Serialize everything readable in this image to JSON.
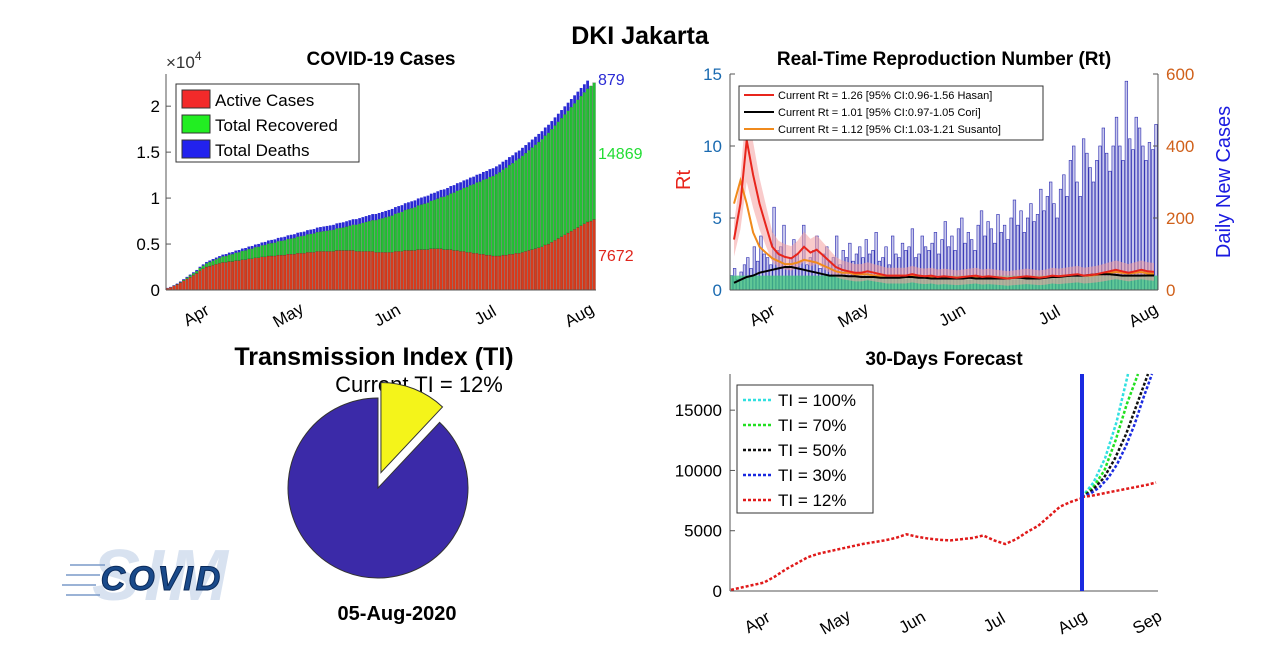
{
  "page": {
    "title": "DKI Jakarta",
    "date": "05-Aug-2020"
  },
  "logo": {
    "text": "COVID",
    "watermark": "SIM"
  },
  "colors": {
    "active": "#d93a1b",
    "recovered": "#22c133",
    "deaths": "#2a2ad4",
    "rt_hasan": "#e8251c",
    "rt_cori": "#000000",
    "rt_susanto": "#f08a1c",
    "daily_cases": "#2a2ab0",
    "ti_pie": "#3b2aa8",
    "ti_slice": "#f4f41a",
    "forecast_line": "#1a2ae0"
  },
  "chart_data": [
    {
      "id": "cases",
      "type": "bar",
      "title": "COVID-19 Cases",
      "stacked": true,
      "multiplier_label": "×10",
      "multiplier_exp": "4",
      "x_ticks": [
        "Apr",
        "May",
        "Jun",
        "Jul",
        "Aug"
      ],
      "ylim": [
        0,
        2.35
      ],
      "yticks": [
        "0",
        "0.5",
        "1",
        "1.5",
        "2"
      ],
      "grid": false,
      "legend_position": "top-left",
      "series": [
        {
          "name": "Active Cases",
          "color_key": "active",
          "last_value": "7672"
        },
        {
          "name": "Total Recovered",
          "color_key": "recovered",
          "last_value": "14869"
        },
        {
          "name": "Total Deaths",
          "color_key": "deaths",
          "last_value": "879"
        }
      ],
      "active": [
        0.02,
        0.03,
        0.045,
        0.06,
        0.08,
        0.1,
        0.12,
        0.14,
        0.16,
        0.18,
        0.21,
        0.23,
        0.25,
        0.26,
        0.27,
        0.28,
        0.29,
        0.3,
        0.3,
        0.31,
        0.31,
        0.32,
        0.32,
        0.33,
        0.33,
        0.34,
        0.34,
        0.35,
        0.35,
        0.36,
        0.36,
        0.37,
        0.37,
        0.37,
        0.38,
        0.38,
        0.38,
        0.39,
        0.39,
        0.39,
        0.4,
        0.4,
        0.4,
        0.41,
        0.41,
        0.41,
        0.42,
        0.42,
        0.42,
        0.42,
        0.42,
        0.42,
        0.43,
        0.43,
        0.43,
        0.43,
        0.43,
        0.43,
        0.42,
        0.42,
        0.42,
        0.42,
        0.42,
        0.42,
        0.41,
        0.41,
        0.41,
        0.41,
        0.41,
        0.41,
        0.42,
        0.42,
        0.42,
        0.43,
        0.43,
        0.43,
        0.43,
        0.44,
        0.44,
        0.44,
        0.44,
        0.45,
        0.45,
        0.45,
        0.45,
        0.44,
        0.44,
        0.44,
        0.43,
        0.43,
        0.42,
        0.42,
        0.41,
        0.41,
        0.4,
        0.4,
        0.39,
        0.39,
        0.38,
        0.38,
        0.37,
        0.37,
        0.37,
        0.38,
        0.38,
        0.39,
        0.39,
        0.4,
        0.4,
        0.41,
        0.42,
        0.43,
        0.44,
        0.45,
        0.46,
        0.47,
        0.49,
        0.5,
        0.52,
        0.54,
        0.56,
        0.58,
        0.6,
        0.62,
        0.64,
        0.66,
        0.68,
        0.7,
        0.72,
        0.74,
        0.75,
        0.7672
      ],
      "recovered": [
        0,
        0,
        0.002,
        0.004,
        0.006,
        0.01,
        0.014,
        0.018,
        0.022,
        0.026,
        0.03,
        0.035,
        0.04,
        0.045,
        0.05,
        0.055,
        0.06,
        0.065,
        0.07,
        0.075,
        0.08,
        0.085,
        0.09,
        0.095,
        0.1,
        0.105,
        0.11,
        0.115,
        0.12,
        0.125,
        0.13,
        0.135,
        0.14,
        0.145,
        0.15,
        0.155,
        0.16,
        0.165,
        0.17,
        0.175,
        0.18,
        0.185,
        0.19,
        0.195,
        0.2,
        0.205,
        0.21,
        0.215,
        0.22,
        0.225,
        0.23,
        0.235,
        0.24,
        0.245,
        0.25,
        0.26,
        0.27,
        0.28,
        0.29,
        0.3,
        0.31,
        0.32,
        0.33,
        0.34,
        0.35,
        0.36,
        0.37,
        0.38,
        0.39,
        0.4,
        0.41,
        0.42,
        0.43,
        0.44,
        0.45,
        0.46,
        0.47,
        0.48,
        0.49,
        0.5,
        0.51,
        0.52,
        0.53,
        0.545,
        0.56,
        0.575,
        0.59,
        0.61,
        0.63,
        0.65,
        0.67,
        0.69,
        0.71,
        0.73,
        0.75,
        0.77,
        0.79,
        0.81,
        0.83,
        0.85,
        0.87,
        0.89,
        0.91,
        0.93,
        0.95,
        0.97,
        0.99,
        1.01,
        1.03,
        1.05,
        1.07,
        1.09,
        1.11,
        1.13,
        1.15,
        1.17,
        1.19,
        1.21,
        1.23,
        1.25,
        1.27,
        1.29,
        1.31,
        1.33,
        1.35,
        1.37,
        1.39,
        1.41,
        1.43,
        1.45,
        1.47,
        1.4869
      ],
      "deaths": [
        0.003,
        0.004,
        0.005,
        0.006,
        0.007,
        0.008,
        0.009,
        0.01,
        0.011,
        0.012,
        0.013,
        0.014,
        0.015,
        0.016,
        0.017,
        0.018,
        0.019,
        0.02,
        0.021,
        0.022,
        0.023,
        0.024,
        0.025,
        0.026,
        0.027,
        0.028,
        0.029,
        0.03,
        0.031,
        0.032,
        0.033,
        0.034,
        0.035,
        0.036,
        0.037,
        0.038,
        0.039,
        0.04,
        0.041,
        0.042,
        0.043,
        0.044,
        0.045,
        0.046,
        0.047,
        0.048,
        0.049,
        0.05,
        0.051,
        0.052,
        0.053,
        0.054,
        0.055,
        0.056,
        0.057,
        0.058,
        0.059,
        0.06,
        0.061,
        0.062,
        0.063,
        0.064,
        0.065,
        0.066,
        0.067,
        0.068,
        0.069,
        0.07,
        0.071,
        0.072,
        0.072,
        0.073,
        0.073,
        0.074,
        0.074,
        0.075,
        0.075,
        0.076,
        0.076,
        0.077,
        0.077,
        0.078,
        0.078,
        0.079,
        0.079,
        0.08,
        0.08,
        0.081,
        0.081,
        0.082,
        0.082,
        0.082,
        0.083,
        0.083,
        0.083,
        0.084,
        0.084,
        0.084,
        0.085,
        0.085,
        0.085,
        0.085,
        0.086,
        0.086,
        0.086,
        0.086,
        0.086,
        0.087,
        0.087,
        0.087,
        0.087,
        0.087,
        0.087,
        0.087,
        0.088,
        0.088,
        0.088,
        0.088,
        0.088,
        0.088,
        0.088,
        0.088,
        0.088,
        0.088,
        0.088,
        0.088,
        0.088,
        0.088,
        0.088,
        0.0879
      ]
    },
    {
      "id": "rt",
      "type": "line",
      "title": "Real-Time Reproduction Number (Rt)",
      "ylabel_left": "Rt",
      "ylabel_right": "Daily New Cases",
      "ylim_left": [
        0,
        15
      ],
      "ylim_right": [
        0,
        600
      ],
      "yticks_left": [
        "0",
        "5",
        "10",
        "15"
      ],
      "yticks_right": [
        "0",
        "200",
        "400",
        "600"
      ],
      "x_ticks": [
        "Apr",
        "May",
        "Jun",
        "Jul",
        "Aug"
      ],
      "legend_position": "top-left",
      "legend": [
        "Current Rt = 1.26 [95% CI:0.96-1.56 Hasan]",
        "Current Rt = 1.01 [95% CI:0.97-1.05 Cori]",
        "Current Rt = 1.12 [95% CI:1.03-1.21 Susanto]"
      ],
      "rt_hasan": [
        3.5,
        6,
        10.4,
        8,
        6,
        4.5,
        3,
        2.5,
        2.3,
        2.2,
        2.5,
        3,
        2.6,
        2.8,
        2.4,
        2,
        1.6,
        1.4,
        1.3,
        1.2,
        1.2,
        1.3,
        1.2,
        1.1,
        1,
        1,
        1,
        1,
        1.1,
        1,
        0.95,
        1,
        0.9,
        0.95,
        0.9,
        0.85,
        0.9,
        0.95,
        1,
        0.9,
        0.95,
        0.9,
        0.85,
        0.8,
        0.85,
        0.9,
        0.95,
        0.9,
        0.85,
        0.9,
        1,
        0.95,
        1,
        1.05,
        1.1,
        1,
        1.05,
        1.1,
        1.2,
        1.3,
        1.4,
        1.3,
        1.2,
        1.3,
        1.4,
        1.3,
        1.26
      ],
      "rt_cori": [
        0.5,
        0.7,
        0.9,
        1,
        1.2,
        1.3,
        1.4,
        1.5,
        1.6,
        1.6,
        1.5,
        1.4,
        1.3,
        1.2,
        1.1,
        1,
        1,
        1,
        0.95,
        0.95,
        0.9,
        0.9,
        0.9,
        0.85,
        0.85,
        0.85,
        0.85,
        0.9,
        0.9,
        0.85,
        0.85,
        0.8,
        0.8,
        0.8,
        0.8,
        0.8,
        0.8,
        0.85,
        0.8,
        0.8,
        0.8,
        0.8,
        0.8,
        0.8,
        0.85,
        0.85,
        0.8,
        0.8,
        0.8,
        0.85,
        0.9,
        0.9,
        0.95,
        1,
        1,
        1,
        1.05,
        1.1,
        1.1,
        1.1,
        1.05,
        1,
        1,
        1,
        1,
        1.01,
        1.01
      ],
      "rt_susanto": [
        6,
        7.6,
        6,
        4,
        3,
        2.6,
        2.2,
        2,
        1.8,
        1.8,
        1.9,
        2.1,
        2,
        1.9,
        1.7,
        1.5,
        1.3,
        1.2,
        1.2,
        1.1,
        1.1,
        1.1,
        1,
        1,
        1,
        1,
        1,
        1,
        1,
        1,
        0.95,
        0.9,
        0.9,
        0.9,
        0.9,
        0.85,
        0.9,
        0.9,
        0.95,
        0.9,
        0.9,
        0.85,
        0.85,
        0.8,
        0.85,
        0.9,
        0.9,
        0.85,
        0.85,
        0.9,
        0.95,
        0.95,
        1,
        1,
        1.05,
        1,
        1,
        1.05,
        1.1,
        1.2,
        1.25,
        1.2,
        1.15,
        1.2,
        1.25,
        1.15,
        1.12
      ],
      "daily_cases": [
        40,
        60,
        30,
        50,
        70,
        90,
        60,
        120,
        80,
        150,
        100,
        90,
        70,
        230,
        110,
        120,
        180,
        60,
        90,
        140,
        100,
        80,
        180,
        70,
        90,
        110,
        150,
        60,
        100,
        120,
        80,
        90,
        150,
        70,
        110,
        90,
        130,
        80,
        100,
        120,
        90,
        140,
        100,
        110,
        160,
        80,
        90,
        120,
        70,
        150,
        100,
        90,
        130,
        110,
        120,
        170,
        90,
        100,
        150,
        120,
        110,
        130,
        160,
        100,
        140,
        190,
        120,
        150,
        110,
        170,
        200,
        130,
        160,
        140,
        110,
        180,
        220,
        150,
        190,
        170,
        130,
        210,
        160,
        180,
        140,
        200,
        250,
        180,
        220,
        160,
        200,
        240,
        190,
        210,
        280,
        220,
        260,
        300,
        240,
        200,
        280,
        320,
        260,
        360,
        400,
        300,
        260,
        420,
        380,
        340,
        300,
        360,
        400,
        450,
        380,
        330,
        400,
        480,
        400,
        360,
        580,
        420,
        390,
        480,
        450,
        400,
        360,
        410,
        390,
        460
      ]
    },
    {
      "id": "ti",
      "type": "pie",
      "title": "Transmission Index (TI)",
      "subtitle": "Current TI = 12%",
      "value": 12
    },
    {
      "id": "forecast",
      "type": "line",
      "title": "30-Days Forecast",
      "ylim": [
        0,
        18000
      ],
      "yticks": [
        "0",
        "5000",
        "10000",
        "15000"
      ],
      "x_ticks": [
        "Apr",
        "May",
        "Jun",
        "Jul",
        "Aug",
        "Sep"
      ],
      "legend_position": "top-left",
      "series": [
        {
          "name": "TI = 100%",
          "color": "#30e0e0",
          "end_values": [
            7800,
            9000,
            11000,
            14000,
            18500
          ]
        },
        {
          "name": "TI = 70%",
          "color": "#22e022",
          "end_values": [
            7800,
            8600,
            10000,
            12500,
            15500,
            18500
          ]
        },
        {
          "name": "TI = 50%",
          "color": "#111111",
          "end_values": [
            7800,
            8400,
            9400,
            11000,
            13000,
            15500,
            18500
          ]
        },
        {
          "name": "TI = 30%",
          "color": "#1a2ae0",
          "end_values": [
            7800,
            8100,
            8600,
            9400,
            10500,
            12000,
            13800,
            16000,
            18500
          ]
        },
        {
          "name": "TI = 12%",
          "color": "#e01a1a",
          "end_values": [
            7800,
            7900,
            8050,
            8200,
            8350,
            8500,
            8650,
            8800,
            9000
          ]
        }
      ],
      "history": [
        100,
        300,
        500,
        700,
        1200,
        1800,
        2300,
        2800,
        3100,
        3300,
        3500,
        3700,
        3900,
        4050,
        4200,
        4400,
        4700,
        4500,
        4350,
        4250,
        4200,
        4300,
        4400,
        4600,
        4200,
        3900,
        4300,
        4900,
        5400,
        6200,
        7000,
        7400,
        7700
      ]
    }
  ]
}
